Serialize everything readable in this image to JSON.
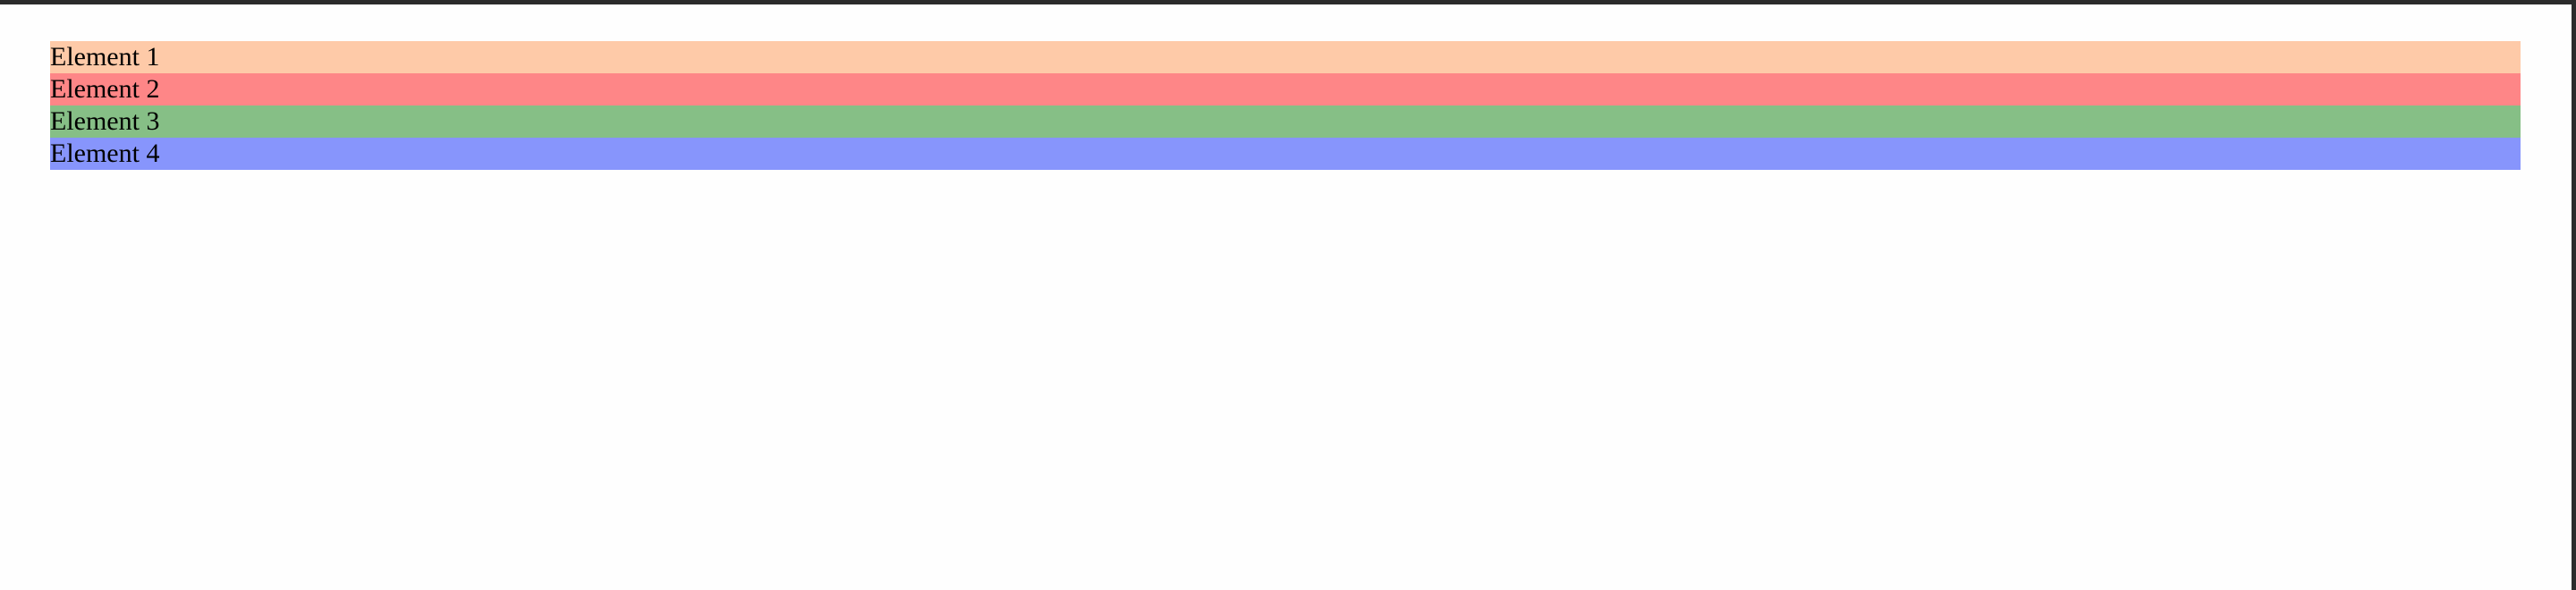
{
  "elements": [
    {
      "label": "Element 1",
      "color": "#fecaa8"
    },
    {
      "label": "Element 2",
      "color": "#fe8687"
    },
    {
      "label": "Element 3",
      "color": "#86bf86"
    },
    {
      "label": "Element 4",
      "color": "#8795fc"
    }
  ]
}
